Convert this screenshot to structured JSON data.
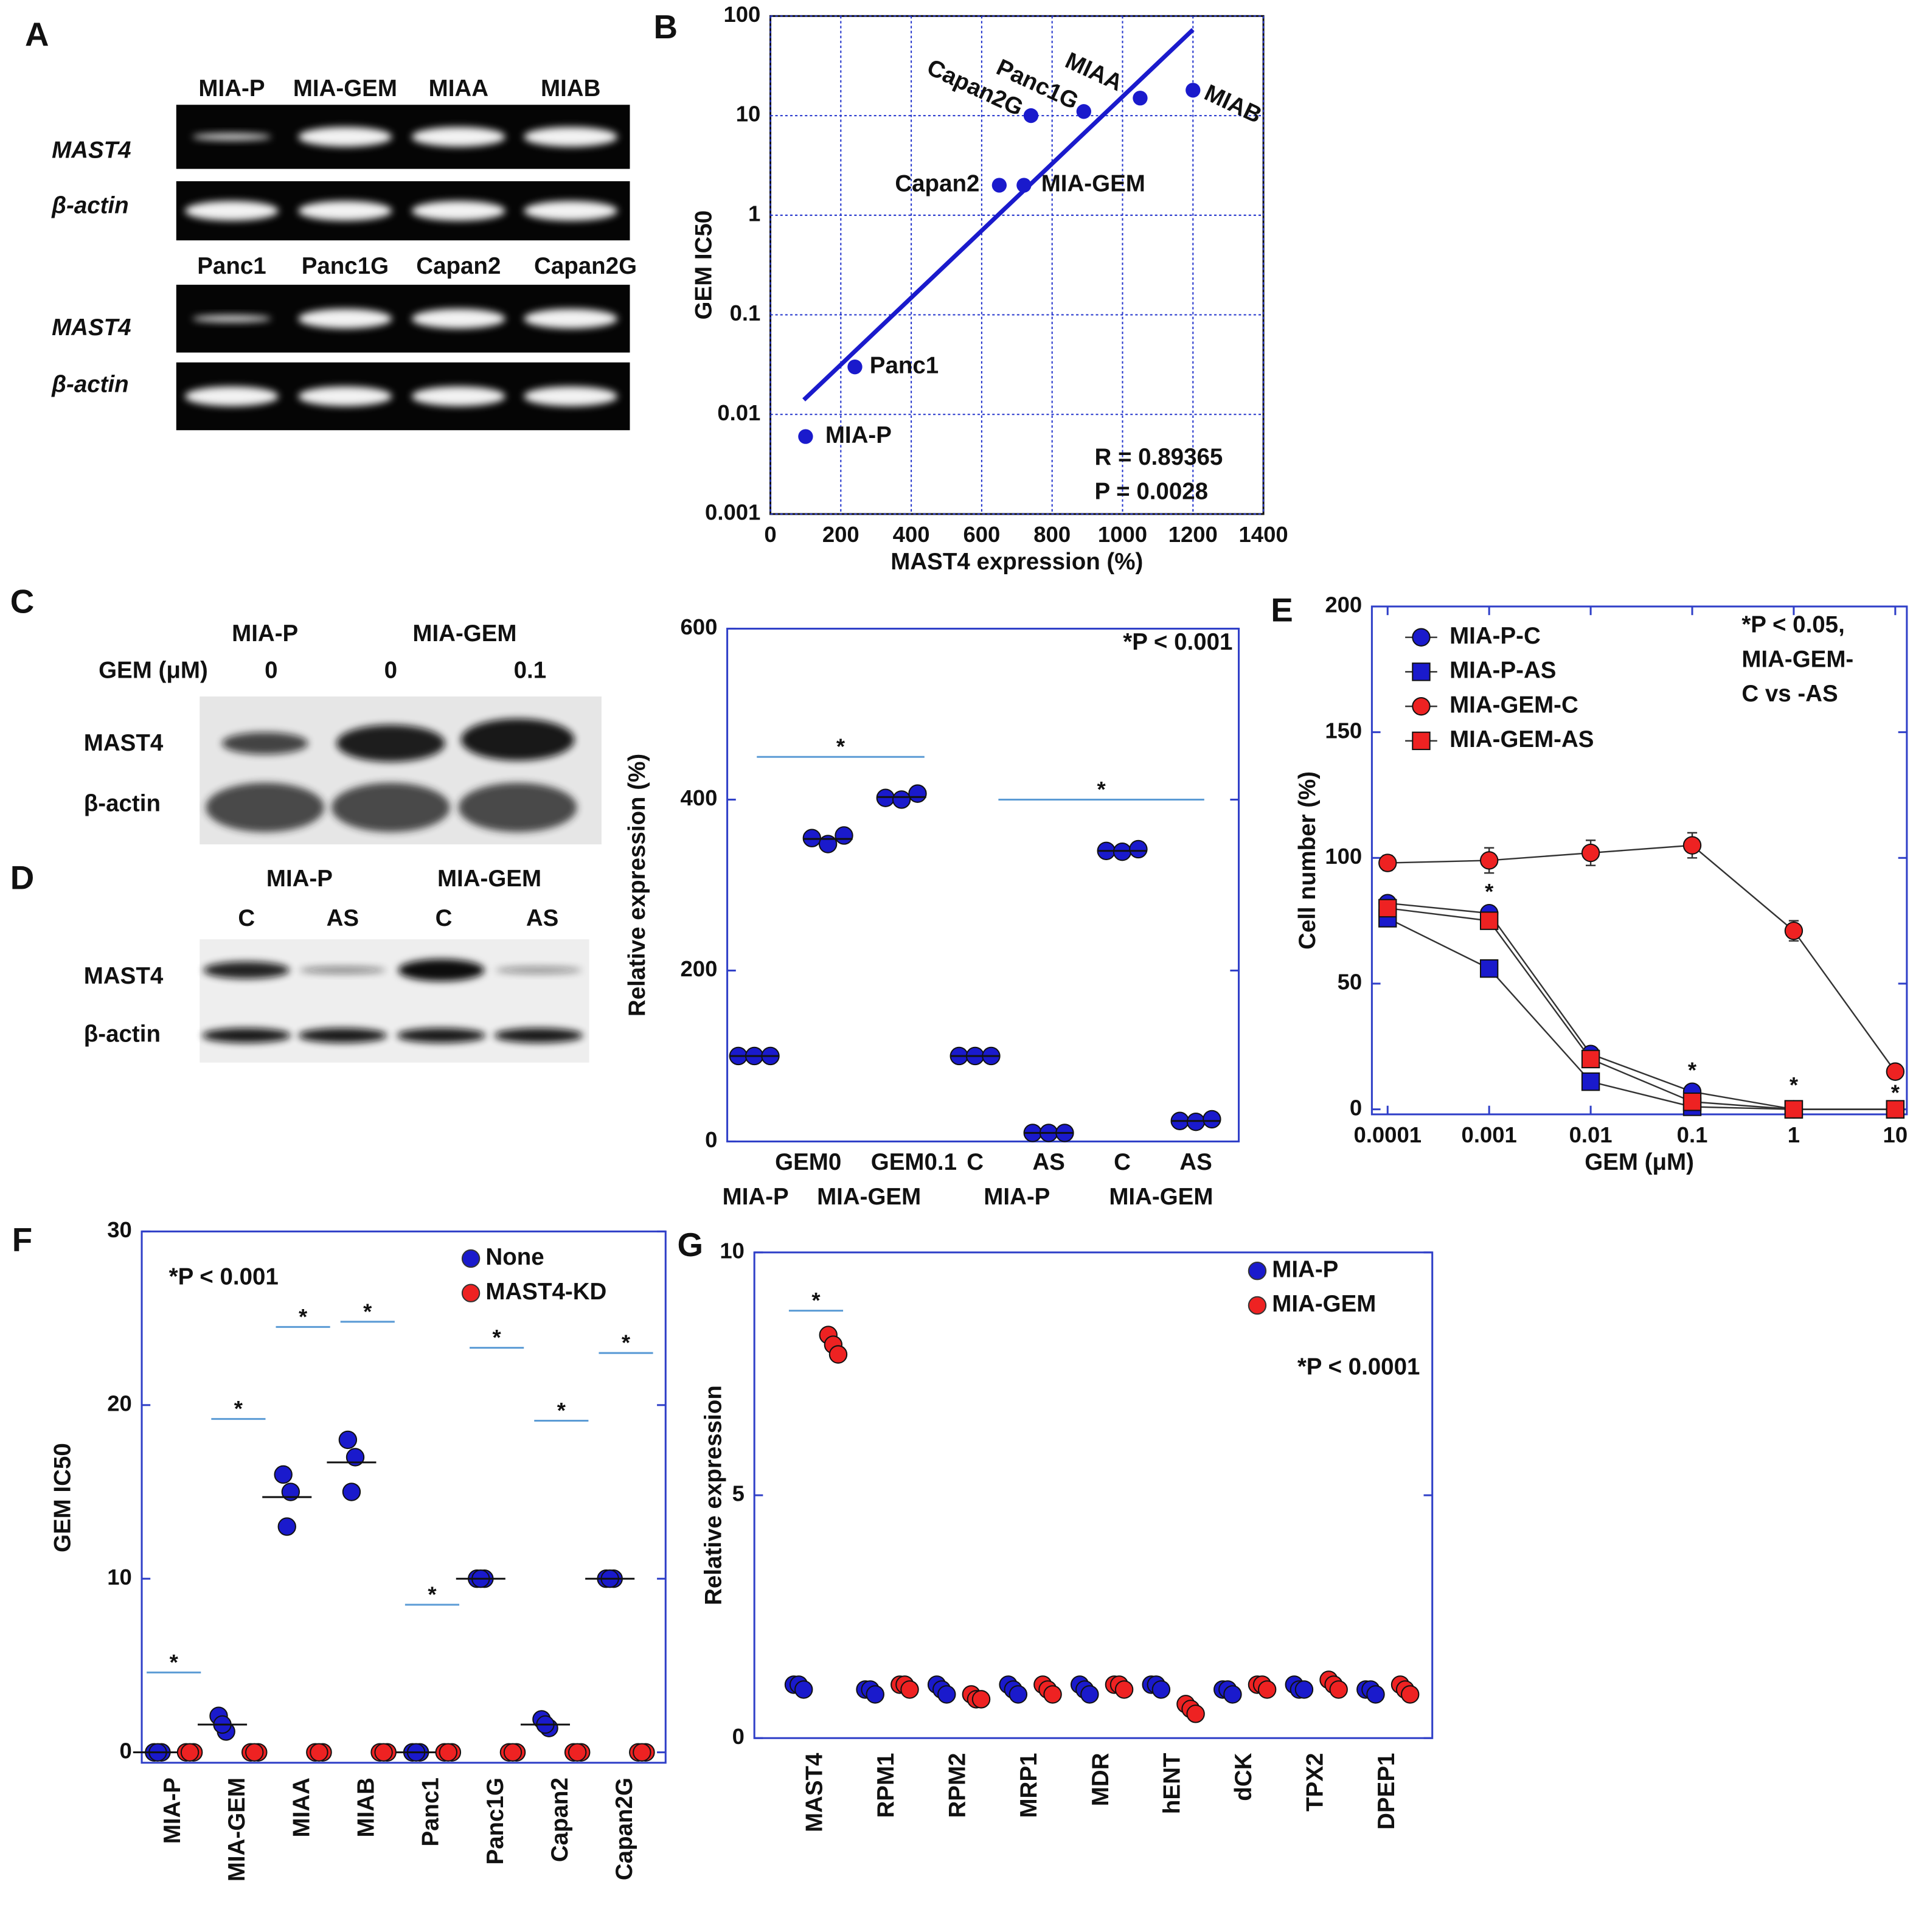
{
  "panel_labels": [
    "A",
    "B",
    "C",
    "D",
    "E",
    "F",
    "G"
  ],
  "gels": {
    "A": {
      "blocks": [
        {
          "lanes": [
            "MIA-P",
            "MIA-GEM",
            "MIAA",
            "MIAB"
          ],
          "rows": [
            "MAST4",
            "β-actin"
          ]
        },
        {
          "lanes": [
            "Panc1",
            "Panc1G",
            "Capan2",
            "Capan2G"
          ],
          "rows": [
            "MAST4",
            "β-actin"
          ]
        }
      ]
    },
    "C": {
      "groups": [
        "MIA-P",
        "MIA-GEM"
      ],
      "condition_label": "GEM (μM)",
      "lanes": [
        "0",
        "0",
        "0.1"
      ],
      "rows": [
        "MAST4",
        "β-actin"
      ]
    },
    "D": {
      "groups": [
        "MIA-P",
        "MIA-GEM"
      ],
      "lanes": [
        "C",
        "AS",
        "C",
        "AS"
      ],
      "rows": [
        "MAST4",
        "β-actin"
      ]
    }
  },
  "chart_data": [
    {
      "type": "scatter",
      "xlabel": "MAST4 expression (%)",
      "ylabel": "GEM IC50",
      "xlim": [
        0,
        1400
      ],
      "xticks": [
        0,
        200,
        400,
        600,
        800,
        1000,
        1200,
        1400
      ],
      "ylim": [
        0.001,
        100
      ],
      "yscale": "log",
      "yticks": [
        0.001,
        0.01,
        0.1,
        1,
        10,
        100
      ],
      "grid": true,
      "color": "#1a1acc",
      "labels": [
        "MIA-P",
        "Panc1",
        "Capan2",
        "MIA-GEM",
        "Capan2G",
        "Panc1G",
        "MIAA",
        "MIAB"
      ],
      "x": [
        100,
        240,
        650,
        720,
        740,
        890,
        1050,
        1200
      ],
      "values": [
        0.006,
        0.03,
        2,
        2,
        10,
        11,
        15,
        18
      ],
      "fit_line": {
        "x": [
          95,
          1200
        ],
        "values": [
          0.014,
          73
        ]
      },
      "annotations": [
        "R = 0.89365",
        "P = 0.0028"
      ]
    },
    {
      "type": "dot",
      "ylabel": "Relative expression (%)",
      "ylim": [
        0,
        600
      ],
      "yticks": [
        0,
        200,
        400,
        600
      ],
      "categories": [
        null,
        "GEM0",
        "GEM0.1",
        "C",
        "AS",
        "C",
        "AS"
      ],
      "group_labels": [
        "MIA-P",
        "MIA-GEM",
        "MIA-P",
        "MIA-GEM"
      ],
      "series": [
        {
          "color": "#1a1acc",
          "values": [
            [
              100,
              100,
              100
            ],
            [
              355,
              348,
              358
            ],
            [
              402,
              400,
              407
            ],
            [
              100,
              100,
              100
            ],
            [
              10,
              10,
              10
            ],
            [
              340,
              339,
              342
            ],
            [
              24,
              23,
              26
            ]
          ],
          "means": [
            100,
            354,
            403,
            100,
            10,
            340,
            24
          ]
        }
      ],
      "significance": [
        {
          "label": "*",
          "value": 450
        },
        {
          "label": "*",
          "value": 400
        }
      ],
      "annotation": "*P < 0.001"
    },
    {
      "type": "line",
      "xlabel": "GEM (μM)",
      "ylabel": "Cell number (%)",
      "xscale": "log",
      "xlim": [
        7e-05,
        13
      ],
      "xticks": [
        0.0001,
        0.001,
        0.01,
        0.1,
        1,
        10
      ],
      "ylim": [
        -2,
        200
      ],
      "yticks": [
        0,
        50,
        100,
        150,
        200
      ],
      "legend": "upper left",
      "x": [
        0.0001,
        0.001,
        0.01,
        0.1,
        1,
        10
      ],
      "series": [
        {
          "name": "MIA-P-C",
          "color": "#1a1acc",
          "marker": "circle",
          "values": [
            82,
            78,
            22,
            7,
            0,
            0
          ]
        },
        {
          "name": "MIA-P-AS",
          "color": "#1a1acc",
          "marker": "square",
          "values": [
            76,
            56,
            11,
            1,
            0,
            0
          ]
        },
        {
          "name": "MIA-GEM-C",
          "color": "#ee2222",
          "marker": "circle",
          "values": [
            98,
            99,
            102,
            105,
            71,
            15
          ],
          "errors": [
            3,
            5,
            5,
            5,
            4,
            2
          ]
        },
        {
          "name": "MIA-GEM-AS",
          "color": "#ee2222",
          "marker": "square",
          "values": [
            80,
            75,
            20,
            3,
            0,
            0
          ]
        }
      ],
      "significance": [
        {
          "x": 0.001,
          "value": 86,
          "label": "*"
        },
        {
          "x": 0.1,
          "value": 15,
          "label": "*"
        },
        {
          "x": 1,
          "value": 9,
          "label": "*"
        },
        {
          "x": 10,
          "value": 6,
          "label": "*"
        }
      ],
      "annotation": [
        "*P < 0.05,",
        "MIA-GEM-",
        "C vs -AS"
      ]
    },
    {
      "type": "dot",
      "ylabel": "GEM IC50",
      "ylim": [
        -0.6,
        30
      ],
      "yticks": [
        0,
        10,
        20,
        30
      ],
      "categories": [
        "MIA-P",
        "MIA-GEM",
        "MIAA",
        "MIAB",
        "Panc1",
        "Panc1G",
        "Capan2",
        "Capan2G"
      ],
      "series": [
        {
          "name": "None",
          "color": "#1a1acc",
          "values": [
            [
              0,
              0,
              0
            ],
            [
              2.1,
              1.2,
              1.6
            ],
            [
              16,
              15,
              13
            ],
            [
              18,
              17,
              15
            ],
            [
              0,
              0,
              0
            ],
            [
              10,
              10,
              10
            ],
            [
              1.9,
              1.4,
              1.6
            ],
            [
              10,
              10,
              10
            ]
          ],
          "means": [
            0,
            1.6,
            14.7,
            16.7,
            0,
            10,
            1.6,
            10
          ]
        },
        {
          "name": "MAST4-KD",
          "color": "#ee2222",
          "values": [
            [
              0,
              0,
              0
            ],
            [
              0,
              0,
              0
            ],
            [
              0,
              0,
              0
            ],
            [
              0,
              0,
              0
            ],
            [
              0,
              0,
              0
            ],
            [
              0,
              0,
              0
            ],
            [
              0,
              0,
              0
            ],
            [
              0,
              0,
              0
            ]
          ]
        }
      ],
      "significance": [
        {
          "label": "*",
          "value": 4.6
        },
        {
          "label": "*",
          "value": 19.2
        },
        {
          "label": "*",
          "value": 24.5
        },
        {
          "label": "*",
          "value": 24.8
        },
        {
          "label": "*",
          "value": 8.5
        },
        {
          "label": "*",
          "value": 23.3
        },
        {
          "label": "*",
          "value": 19.1
        },
        {
          "label": "*",
          "value": 23
        }
      ],
      "annotation": "*P < 0.001"
    },
    {
      "type": "dot",
      "ylabel": "Relative expression",
      "ylim": [
        0,
        10
      ],
      "yticks": [
        0,
        5,
        10
      ],
      "categories": [
        "MAST4",
        "RPM1",
        "RPM2",
        "MRP1",
        "MDR",
        "hENT",
        "dCK",
        "TPX2",
        "DPEP1"
      ],
      "series": [
        {
          "name": "MIA-P",
          "color": "#1a1acc",
          "values": [
            [
              1.1,
              1.1,
              1.0
            ],
            [
              1.0,
              1.0,
              0.9
            ],
            [
              1.1,
              1.0,
              0.9
            ],
            [
              1.1,
              1.0,
              0.9
            ],
            [
              1.1,
              1.0,
              0.9
            ],
            [
              1.1,
              1.1,
              1.0
            ],
            [
              1.0,
              1.0,
              0.9
            ],
            [
              1.1,
              1.0,
              1.0
            ],
            [
              1.0,
              1.0,
              0.9
            ]
          ]
        },
        {
          "name": "MIA-GEM",
          "color": "#ee2222",
          "values": [
            [
              8.3,
              8.1,
              7.9
            ],
            [
              1.1,
              1.1,
              1.0
            ],
            [
              0.9,
              0.8,
              0.8
            ],
            [
              1.1,
              1.0,
              0.9
            ],
            [
              1.1,
              1.1,
              1.0
            ],
            [
              0.7,
              0.6,
              0.5
            ],
            [
              1.1,
              1.1,
              1.0
            ],
            [
              1.2,
              1.1,
              1.0
            ],
            [
              1.1,
              1.0,
              0.9
            ]
          ]
        }
      ],
      "significance": [
        {
          "label": "*",
          "value": 8.8
        }
      ],
      "annotation": "*P < 0.0001"
    }
  ]
}
